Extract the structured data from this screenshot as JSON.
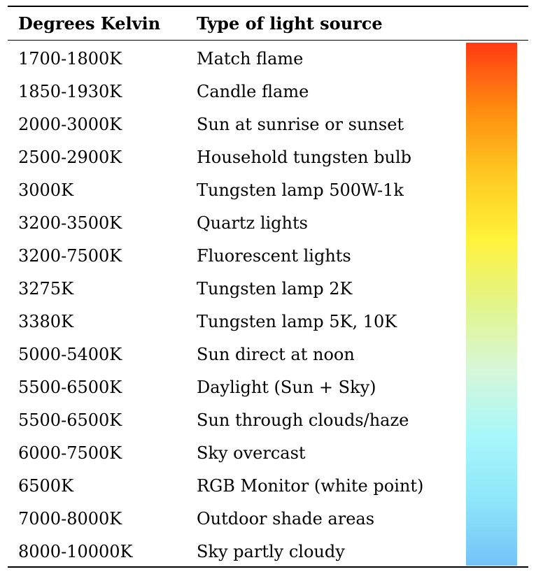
{
  "table": {
    "headers": {
      "kelvin": "Degrees Kelvin",
      "source": "Type of light source"
    },
    "rows": [
      {
        "kelvin": "1700-1800K",
        "source": "Match flame"
      },
      {
        "kelvin": "1850-1930K",
        "source": "Candle flame"
      },
      {
        "kelvin": "2000-3000K",
        "source": "Sun at sunrise or sunset"
      },
      {
        "kelvin": "2500-2900K",
        "source": "Household tungsten bulb"
      },
      {
        "kelvin": "3000K",
        "source": "Tungsten lamp 500W-1k"
      },
      {
        "kelvin": "3200-3500K",
        "source": "Quartz lights"
      },
      {
        "kelvin": "3200-7500K",
        "source": "Fluorescent lights"
      },
      {
        "kelvin": "3275K",
        "source": "Tungsten lamp 2K"
      },
      {
        "kelvin": "3380K",
        "source": "Tungsten lamp 5K, 10K"
      },
      {
        "kelvin": "5000-5400K",
        "source": "Sun direct at noon"
      },
      {
        "kelvin": "5500-6500K",
        "source": "Daylight (Sun + Sky)"
      },
      {
        "kelvin": "5500-6500K",
        "source": "Sun through clouds/haze"
      },
      {
        "kelvin": "6000-7500K",
        "source": "Sky overcast"
      },
      {
        "kelvin": "6500K",
        "source": "RGB Monitor (white point)"
      },
      {
        "kelvin": "7000-8000K",
        "source": "Outdoor shade areas"
      },
      {
        "kelvin": "8000-10000K",
        "source": "Sky partly cloudy"
      }
    ]
  },
  "color_bar": {
    "stops": [
      "#ff3a14",
      "#ff8a10",
      "#ffc820",
      "#fff23a",
      "#e2f58a",
      "#d6f7d8",
      "#a8f7fa",
      "#8ee6fa",
      "#74c2f7"
    ]
  }
}
